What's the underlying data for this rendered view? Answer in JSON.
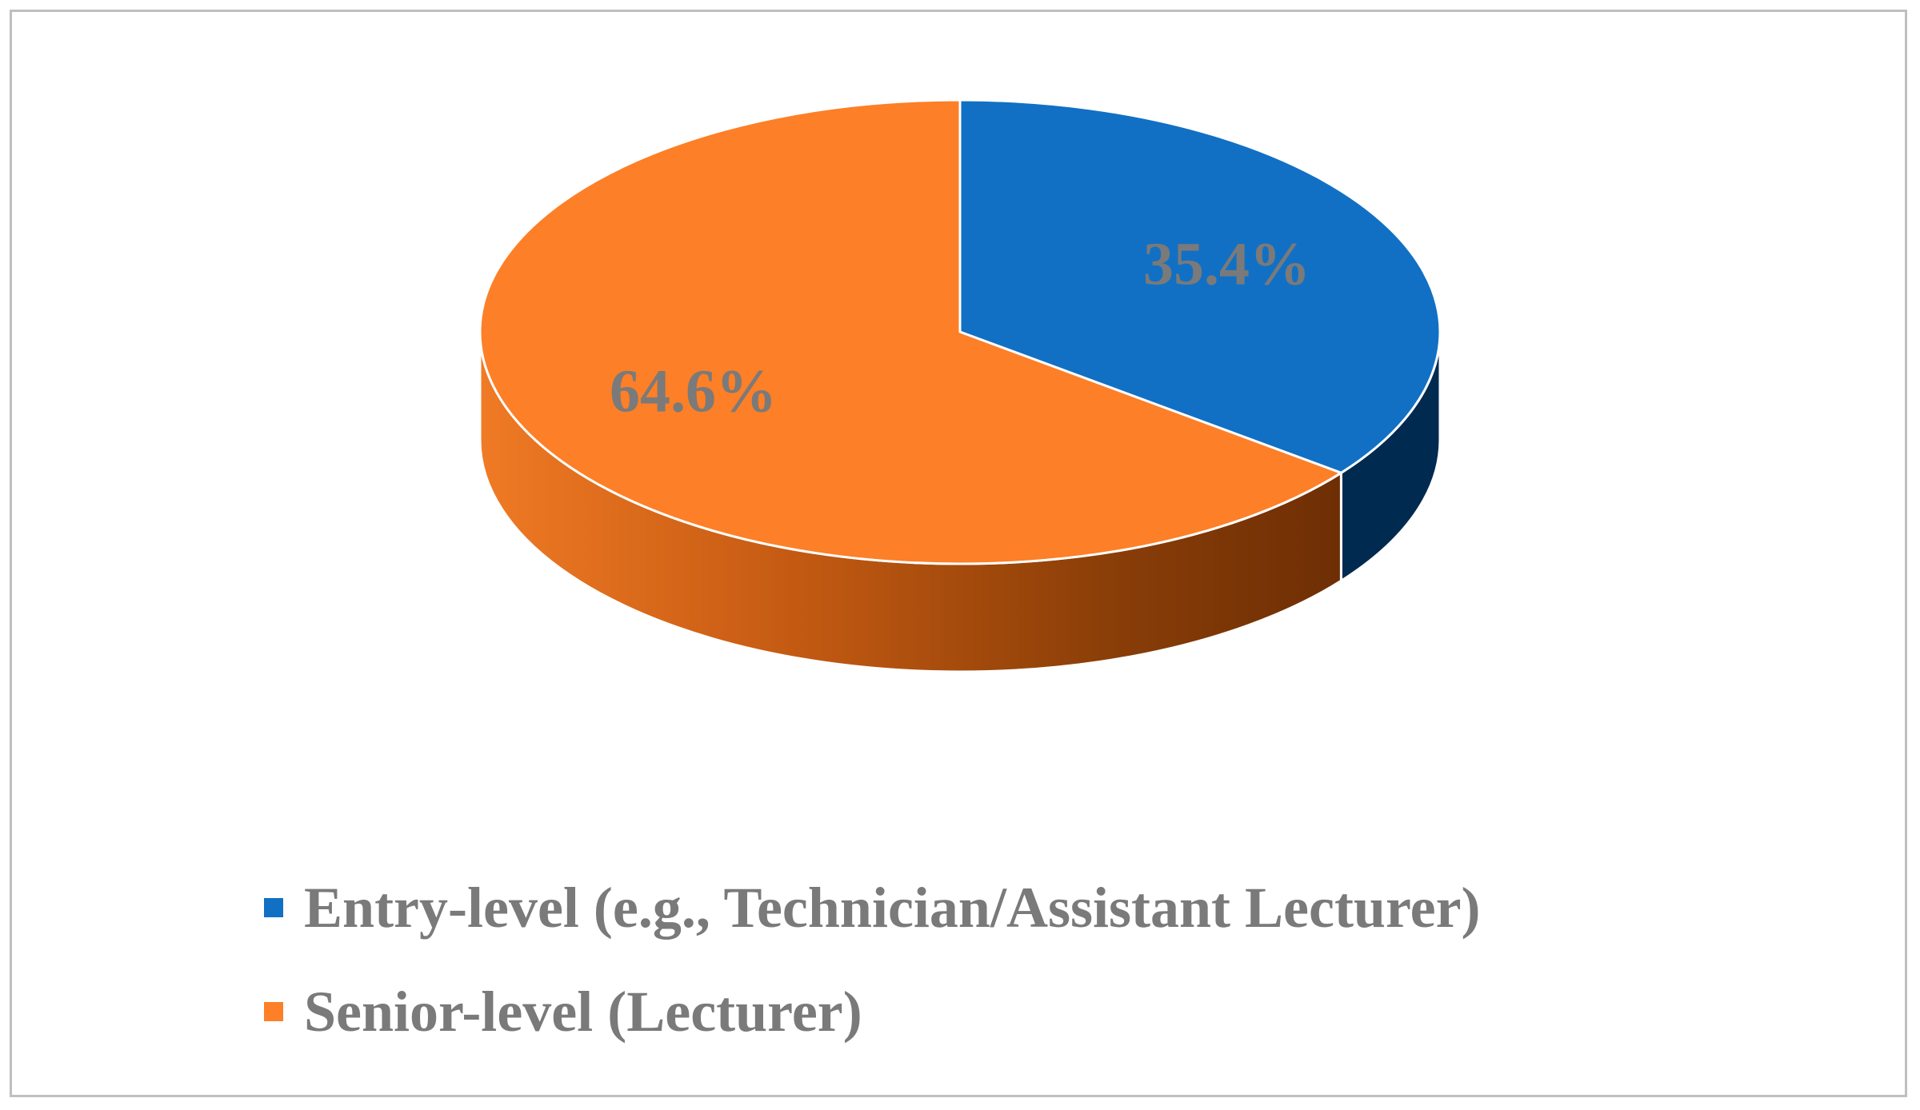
{
  "chart_data": {
    "type": "pie",
    "style": "3d",
    "slices": [
      {
        "label": "Entry-level (e.g., Technician/Assistant Lecturer)",
        "value": 35.4,
        "display": "35.4%",
        "color": "#1170c4",
        "side_color": "#002a50"
      },
      {
        "label": "Senior-level (Lecturer)",
        "value": 64.6,
        "display": "64.6%",
        "color": "#fd7f27",
        "side_color": "#7a3306"
      }
    ],
    "legend_position": "bottom-left",
    "label_color": "#7a7a7a"
  }
}
